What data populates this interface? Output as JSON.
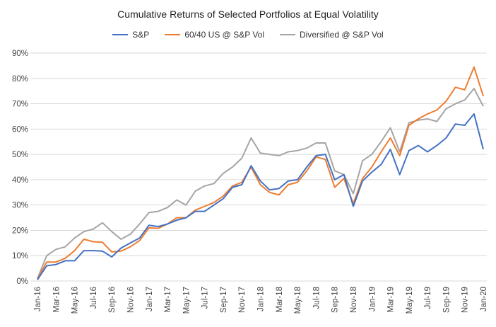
{
  "chart_data": {
    "type": "line",
    "title": "Cumulative Returns of Selected Portfolios at Equal Volatility",
    "xlabel": "",
    "ylabel": "",
    "ylim": [
      0,
      90
    ],
    "yticks": [
      "0%",
      "10%",
      "20%",
      "30%",
      "40%",
      "50%",
      "60%",
      "70%",
      "80%",
      "90%"
    ],
    "grid": true,
    "legend": "top",
    "x": [
      "Jan-16",
      "Feb-16",
      "Mar-16",
      "Apr-16",
      "May-16",
      "Jun-16",
      "Jul-16",
      "Aug-16",
      "Sep-16",
      "Oct-16",
      "Nov-16",
      "Dec-16",
      "Jan-17",
      "Feb-17",
      "Mar-17",
      "Apr-17",
      "May-17",
      "Jun-17",
      "Jul-17",
      "Aug-17",
      "Sep-17",
      "Oct-17",
      "Nov-17",
      "Dec-17",
      "Jan-18",
      "Feb-18",
      "Mar-18",
      "Apr-18",
      "May-18",
      "Jun-18",
      "Jul-18",
      "Aug-18",
      "Sep-18",
      "Oct-18",
      "Nov-18",
      "Dec-18",
      "Jan-19",
      "Feb-19",
      "Mar-19",
      "Apr-19",
      "May-19",
      "Jun-19",
      "Jul-19",
      "Aug-19",
      "Sep-19",
      "Oct-19",
      "Nov-19",
      "Dec-19",
      "Jan-20"
    ],
    "xtick_labels": [
      "Jan-16",
      "Mar-16",
      "May-16",
      "Jul-16",
      "Sep-16",
      "Nov-16",
      "Jan-17",
      "Mar-17",
      "May-17",
      "Jul-17",
      "Sep-17",
      "Nov-17",
      "Jan-18",
      "Mar-18",
      "May-18",
      "Jul-18",
      "Sep-18",
      "Nov-18",
      "Jan-19",
      "Mar-19",
      "May-19",
      "Jul-19",
      "Sep-19",
      "Nov-19",
      "Jan-20"
    ],
    "series": [
      {
        "name": "S&P",
        "color": "#4472C4",
        "values": [
          0.5,
          6,
          6.5,
          8,
          8,
          12,
          12,
          11.8,
          9.5,
          13,
          15,
          17,
          22,
          21.5,
          22.5,
          24,
          25,
          27.5,
          27.5,
          30,
          32.5,
          37,
          38,
          45.5,
          39.5,
          36,
          36.5,
          39.5,
          40,
          45,
          49.5,
          50,
          40,
          42,
          29.5,
          39.5,
          43,
          46,
          52,
          42,
          51.5,
          53.5,
          51,
          53.5,
          56.5,
          62,
          61.5,
          66,
          52
        ]
      },
      {
        "name": "60/40 US @ S&P Vol",
        "color": "#ED7D31",
        "values": [
          0.8,
          7.5,
          7.5,
          9,
          12,
          16.5,
          15.5,
          15.3,
          11.5,
          11.8,
          13.5,
          16,
          21,
          20.8,
          22.5,
          25,
          25,
          28,
          29.5,
          31,
          33.5,
          37.5,
          39,
          45,
          38,
          35,
          34,
          38,
          39,
          43.5,
          49,
          48,
          37,
          40.5,
          30.5,
          40.5,
          45,
          51,
          56.5,
          49.5,
          61.5,
          64,
          66,
          67.5,
          71,
          76.5,
          75.5,
          84.5,
          73
        ]
      },
      {
        "name": "Diversified @ S&P Vol",
        "color": "#A5A5A5",
        "values": [
          1,
          10,
          12.5,
          13.5,
          17,
          19.5,
          20.5,
          23,
          19.5,
          16.5,
          18.5,
          22.5,
          27,
          27.5,
          29,
          32,
          30,
          35.5,
          37.5,
          38.5,
          42.5,
          45,
          48.5,
          56.5,
          50.5,
          50,
          49.5,
          51,
          51.5,
          52.5,
          54.5,
          54.5,
          43.5,
          42,
          34.5,
          47.5,
          50,
          55,
          60.5,
          51,
          62.5,
          63.5,
          64,
          63,
          68,
          70,
          71.5,
          76,
          69
        ]
      }
    ]
  }
}
